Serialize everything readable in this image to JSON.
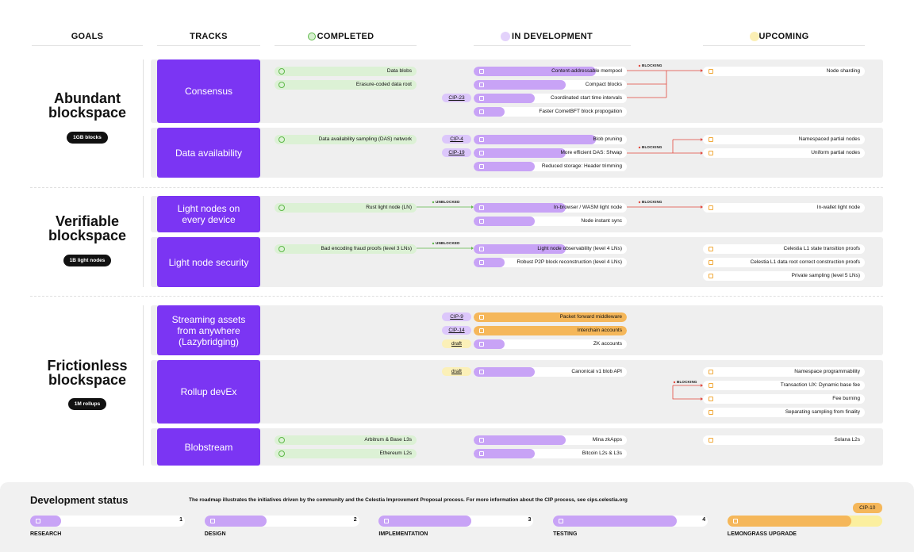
{
  "header": {
    "columns": [
      "GOALS",
      "TRACKS",
      "COMPLETED",
      "IN DEVELOPMENT",
      "UPCOMING"
    ]
  },
  "goals": [
    {
      "title": "Abundant blockspace",
      "badge": "1GB blocks",
      "tracks": [
        {
          "name": "Consensus",
          "completed": [
            "Data blobs",
            "Erasure-coded data root"
          ],
          "in_development": [
            {
              "label": "Content-addressable mempool",
              "stage": 4
            },
            {
              "label": "Compact blocks",
              "stage": 3
            },
            {
              "label": "Coordinated start time intervals",
              "stage": 2,
              "tag": "CIP-23"
            },
            {
              "label": "Faster CometBFT block propogation",
              "stage": 1
            }
          ],
          "upcoming": [
            "Node sharding"
          ],
          "blocking_label": "BLOCKING"
        },
        {
          "name": "Data availability",
          "completed": [
            "Data availability sampling (DAS) network"
          ],
          "in_development": [
            {
              "label": "Blob pruning",
              "stage": 4,
              "tag": "CIP-4"
            },
            {
              "label": "More efficient DAS: Shwap",
              "stage": 3,
              "tag": "CIP-19"
            },
            {
              "label": "Reduced storage: Header trimming",
              "stage": 2
            }
          ],
          "upcoming": [
            "Namespaced partial nodes",
            "Uniform partial nodes"
          ],
          "blocking_label": "BLOCKING"
        }
      ]
    },
    {
      "title": "Verifiable blockspace",
      "badge": "1B light nodes",
      "tracks": [
        {
          "name": "Light nodes on every device",
          "completed": [
            "Rust light node (LN)"
          ],
          "in_development": [
            {
              "label": "In-browser / WASM light node",
              "stage": 3
            },
            {
              "label": "Node instant sync",
              "stage": 2
            }
          ],
          "upcoming": [
            "In-wallet light node"
          ],
          "unblocked_label": "UNBLOCKED",
          "blocking_label": "BLOCKING"
        },
        {
          "name": "Light node security",
          "completed": [
            "Bad encoding fraud proofs (level 3 LNs)"
          ],
          "in_development": [
            {
              "label": "Light node observability (level 4 LNs)",
              "stage": 3
            },
            {
              "label": "Robust P2P block reconstruction (level 4 LNs)",
              "stage": 1
            }
          ],
          "upcoming": [
            "Celestia L1 state transition proofs",
            "Celestia L1 data root correct construction proofs",
            "Private sampling (level 5 LNs)"
          ],
          "unblocked_label": "UNBLOCKED"
        }
      ]
    },
    {
      "title": "Frictionless blockspace",
      "badge": "1M rollups",
      "tracks": [
        {
          "name": "Streaming assets from anywhere (Lazybridging)",
          "completed": [],
          "in_development": [
            {
              "label": "Packet forward middleware",
              "stage": 5,
              "tag": "CIP-9"
            },
            {
              "label": "Interchain accounts",
              "stage": 5,
              "tag": "CIP-14"
            },
            {
              "label": "ZK accounts",
              "stage": 1,
              "tag": "draft"
            }
          ],
          "upcoming": []
        },
        {
          "name": "Rollup devEx",
          "completed": [],
          "in_development": [
            {
              "label": "Canonical v1 blob API",
              "stage": 2,
              "tag": "draft"
            }
          ],
          "upcoming": [
            "Namespace programmability",
            "Transaction UX: Dynamic base fee",
            "Fee burning",
            "Separating sampling from finality"
          ],
          "blocking_label": "BLOCKING"
        },
        {
          "name": "Blobstream",
          "completed": [
            "Arbitrum & Base L3s",
            "Ethereum L2s"
          ],
          "in_development": [
            {
              "label": "Mina zkApps",
              "stage": 3
            },
            {
              "label": "Bitcoin L2s & L3s",
              "stage": 2
            }
          ],
          "upcoming": [
            "Solana L2s"
          ]
        }
      ]
    }
  ],
  "footer": {
    "title": "Development status",
    "description": "The roadmap illustrates the initiatives driven by the community and the Celestia Improvement Proposal process. For more information about the CIP process, see cips.celestia.org",
    "stages": [
      {
        "label": "RESEARCH",
        "number": 1
      },
      {
        "label": "DESIGN",
        "number": 2
      },
      {
        "label": "IMPLEMENTATION",
        "number": 3
      },
      {
        "label": "TESTING",
        "number": 4
      },
      {
        "label": "LEMONGRASS UPGRADE",
        "tag": "CIP-10"
      }
    ]
  }
}
